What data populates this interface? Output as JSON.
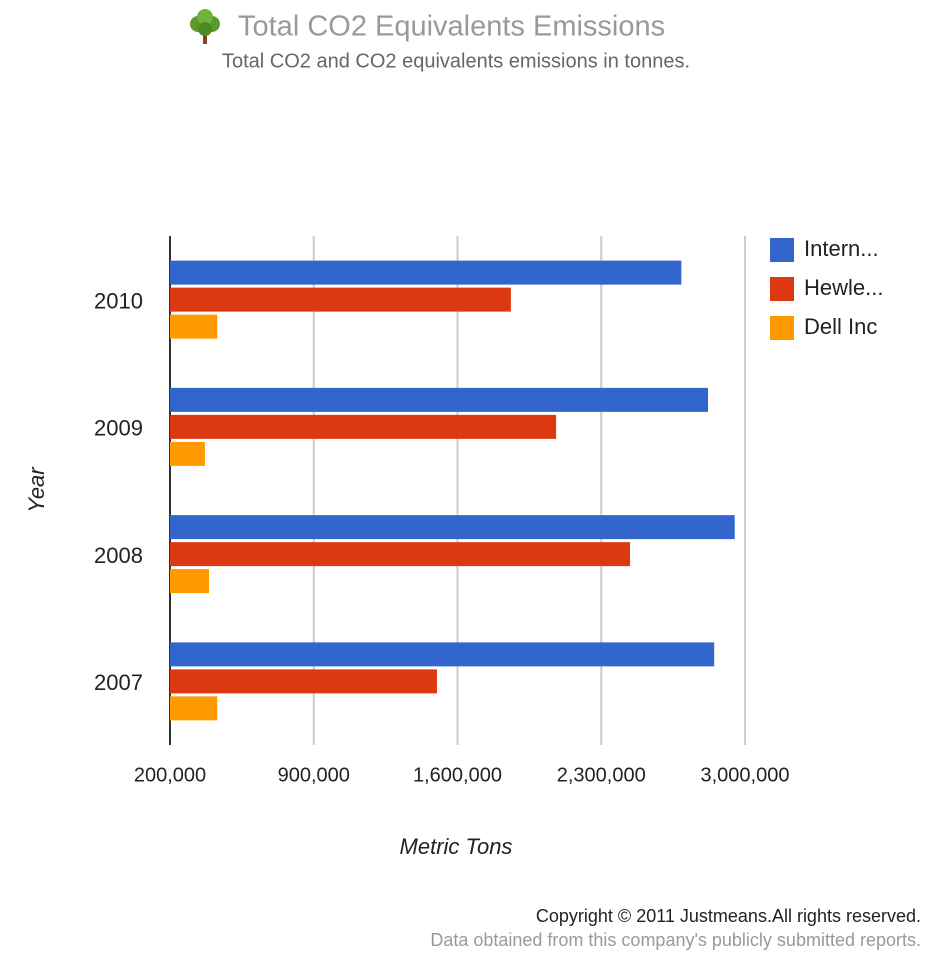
{
  "chart_data": {
    "type": "hbar",
    "title": "Total CO2 Equivalents Emissions",
    "subtitle": "Total CO2 and CO2 equivalents emissions in tonnes.",
    "x_label": "Metric Tons",
    "y_label": "Year",
    "categories": [
      "2010",
      "2009",
      "2008",
      "2007"
    ],
    "series": [
      {
        "name": "Intern...",
        "color": "#3366cc",
        "values": [
          2690000,
          2820000,
          2950000,
          2850000
        ]
      },
      {
        "name": "Hewle...",
        "color": "#dc3912",
        "values": [
          1860000,
          2080000,
          2440000,
          1500000
        ]
      },
      {
        "name": "Dell Inc",
        "color": "#ff9900",
        "values": [
          430000,
          370000,
          390000,
          430000
        ]
      }
    ],
    "xlim": [
      200000,
      3000000
    ],
    "xticks": [
      {
        "value": 200000,
        "label": "200,000"
      },
      {
        "value": 900000,
        "label": "900,000"
      },
      {
        "value": 1600000,
        "label": "1,600,000"
      },
      {
        "value": 2300000,
        "label": "2,300,000"
      },
      {
        "value": 3000000,
        "label": "3,000,000"
      }
    ],
    "grid": true,
    "legend": "right",
    "footer": {
      "copyright": "Copyright © 2011 Justmeans.All rights reserved.",
      "source": "Data obtained from this company's publicly submitted reports."
    }
  }
}
